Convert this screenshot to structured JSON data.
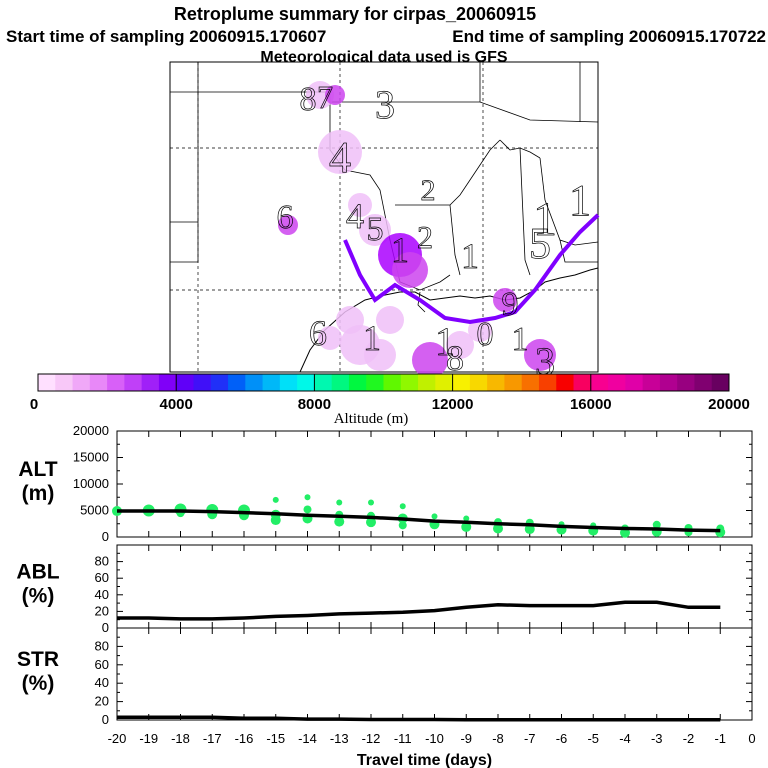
{
  "header": {
    "title": "Retroplume summary for cirpas_20060915",
    "start": "Start time of sampling 20060915.170607",
    "end": "End time of sampling 20060915.170722",
    "met": "Meteorological data used is GFS"
  },
  "map": {
    "plume_labels": [
      "8",
      "7",
      "3",
      "4",
      "2",
      "6",
      "4",
      "5",
      "1",
      "1",
      "1",
      "2",
      "1",
      "5",
      "6",
      "1",
      "9",
      "1",
      "8",
      "0",
      "1",
      "3"
    ],
    "plume_color": "#8000ff",
    "marker_colors": [
      "#f0c0f8",
      "#cc44ee",
      "#aa00ff"
    ]
  },
  "colorbar": {
    "title": "Altitude (m)",
    "tick_labels": [
      "0",
      "4000",
      "8000",
      "12000",
      "16000",
      "20000"
    ],
    "range": [
      0,
      20000
    ],
    "colors": [
      "#ffe0ff",
      "#f8c8f8",
      "#f0a8f8",
      "#e888f8",
      "#d860f8",
      "#c040f8",
      "#a020f8",
      "#8000f8",
      "#6000f8",
      "#4010f8",
      "#2030f8",
      "#0060f8",
      "#0090f8",
      "#00b8f8",
      "#00e0f8",
      "#00f8e8",
      "#00f8b0",
      "#00f880",
      "#00f840",
      "#20f820",
      "#60f800",
      "#90f800",
      "#c0f000",
      "#e0f000",
      "#f8f000",
      "#f8d800",
      "#f8b800",
      "#f89800",
      "#f87000",
      "#f84000",
      "#f80000",
      "#f80060",
      "#f80090",
      "#f000a0",
      "#e000a8",
      "#c80098",
      "#b00090",
      "#980080",
      "#800070",
      "#680060"
    ]
  },
  "chart_data": [
    {
      "type": "line",
      "name": "ALT",
      "ylabel": "ALT\n(m)",
      "ylabel_lines": [
        "ALT",
        "(m)"
      ],
      "ylim": [
        0,
        20000
      ],
      "yticks": [
        0,
        5000,
        10000,
        15000,
        20000
      ],
      "ytick_labels": [
        "0",
        "5000",
        "10000",
        "15000",
        "20000"
      ],
      "x": [
        -20,
        -19,
        -18,
        -17,
        -16,
        -15,
        -14,
        -13,
        -12,
        -11,
        -10,
        -9,
        -8,
        -7,
        -6,
        -5,
        -4,
        -3,
        -2,
        -1
      ],
      "values": [
        4900,
        4900,
        4900,
        4800,
        4600,
        4400,
        4100,
        3900,
        3700,
        3400,
        3000,
        2800,
        2500,
        2300,
        2000,
        1800,
        1600,
        1500,
        1300,
        1200
      ],
      "scatter_color": "#22ee66",
      "scatter": [
        {
          "x": -20,
          "y": 4900,
          "r": 5
        },
        {
          "x": -19,
          "y": 5000,
          "r": 6
        },
        {
          "x": -18,
          "y": 5200,
          "r": 6
        },
        {
          "x": -18,
          "y": 4500,
          "r": 4
        },
        {
          "x": -17,
          "y": 5100,
          "r": 6
        },
        {
          "x": -17,
          "y": 4300,
          "r": 5
        },
        {
          "x": -16,
          "y": 5000,
          "r": 6
        },
        {
          "x": -16,
          "y": 4100,
          "r": 5
        },
        {
          "x": -15,
          "y": 7000,
          "r": 3
        },
        {
          "x": -15,
          "y": 4200,
          "r": 5
        },
        {
          "x": -15,
          "y": 3200,
          "r": 5
        },
        {
          "x": -14,
          "y": 7500,
          "r": 3
        },
        {
          "x": -14,
          "y": 5200,
          "r": 4
        },
        {
          "x": -14,
          "y": 3500,
          "r": 5
        },
        {
          "x": -13,
          "y": 6500,
          "r": 3
        },
        {
          "x": -13,
          "y": 4200,
          "r": 4
        },
        {
          "x": -13,
          "y": 2900,
          "r": 5
        },
        {
          "x": -12,
          "y": 6500,
          "r": 3
        },
        {
          "x": -12,
          "y": 4000,
          "r": 4
        },
        {
          "x": -12,
          "y": 2800,
          "r": 5
        },
        {
          "x": -11,
          "y": 5800,
          "r": 3
        },
        {
          "x": -11,
          "y": 3500,
          "r": 5
        },
        {
          "x": -11,
          "y": 2200,
          "r": 4
        },
        {
          "x": -10,
          "y": 3900,
          "r": 3
        },
        {
          "x": -10,
          "y": 2400,
          "r": 5
        },
        {
          "x": -9,
          "y": 3500,
          "r": 3
        },
        {
          "x": -9,
          "y": 1900,
          "r": 5
        },
        {
          "x": -8,
          "y": 2800,
          "r": 4
        },
        {
          "x": -8,
          "y": 1600,
          "r": 5
        },
        {
          "x": -7,
          "y": 2700,
          "r": 4
        },
        {
          "x": -7,
          "y": 1500,
          "r": 5
        },
        {
          "x": -6,
          "y": 2400,
          "r": 3
        },
        {
          "x": -6,
          "y": 1400,
          "r": 5
        },
        {
          "x": -5,
          "y": 2200,
          "r": 3
        },
        {
          "x": -5,
          "y": 1200,
          "r": 5
        },
        {
          "x": -4,
          "y": 1600,
          "r": 4
        },
        {
          "x": -4,
          "y": 800,
          "r": 5
        },
        {
          "x": -3,
          "y": 2300,
          "r": 4
        },
        {
          "x": -3,
          "y": 1000,
          "r": 5
        },
        {
          "x": -2,
          "y": 1700,
          "r": 4
        },
        {
          "x": -2,
          "y": 900,
          "r": 4
        },
        {
          "x": -1,
          "y": 1600,
          "r": 4
        },
        {
          "x": -1,
          "y": 900,
          "r": 5
        }
      ]
    },
    {
      "type": "line",
      "name": "ABL",
      "ylabel_lines": [
        "ABL",
        "(%)"
      ],
      "ylim": [
        0,
        100
      ],
      "yticks": [
        0,
        20,
        40,
        60,
        80
      ],
      "ytick_labels": [
        "0",
        "20",
        "40",
        "60",
        "80"
      ],
      "x": [
        -20,
        -19,
        -18,
        -17,
        -16,
        -15,
        -14,
        -13,
        -12,
        -11,
        -10,
        -9,
        -8,
        -7,
        -6,
        -5,
        -4,
        -3,
        -2,
        -1
      ],
      "values": [
        12,
        12,
        11,
        11,
        12,
        14,
        15,
        17,
        18,
        19,
        21,
        25,
        28,
        27,
        27,
        27,
        31,
        31,
        25,
        25
      ]
    },
    {
      "type": "line",
      "name": "STR",
      "ylabel_lines": [
        "STR",
        "(%)"
      ],
      "ylim": [
        0,
        100
      ],
      "yticks": [
        0,
        20,
        40,
        60,
        80
      ],
      "ytick_labels": [
        "0",
        "20",
        "40",
        "60",
        "80"
      ],
      "x": [
        -20,
        -19,
        -18,
        -17,
        -16,
        -15,
        -14,
        -13,
        -12,
        -11,
        -10,
        -9,
        -8,
        -7,
        -6,
        -5,
        -4,
        -3,
        -2,
        -1
      ],
      "values": [
        3,
        3,
        3,
        3,
        2,
        2,
        1,
        1,
        0.5,
        0.5,
        0.5,
        0.3,
        0.3,
        0.2,
        0.2,
        0.2,
        0.2,
        0.2,
        0.2,
        0.2
      ]
    }
  ],
  "xaxis": {
    "title": "Travel time (days)",
    "xlim": [
      -20,
      0
    ],
    "ticks": [
      -20,
      -19,
      -18,
      -17,
      -16,
      -15,
      -14,
      -13,
      -12,
      -11,
      -10,
      -9,
      -8,
      -7,
      -6,
      -5,
      -4,
      -3,
      -2,
      -1,
      0
    ],
    "tick_labels": [
      "-20",
      "-19",
      "-18",
      "-17",
      "-16",
      "-15",
      "-14",
      "-13",
      "-12",
      "-11",
      "-10",
      "-9",
      "-8",
      "-7",
      "-6",
      "-5",
      "-4",
      "-3",
      "-2",
      "-1",
      "0"
    ]
  }
}
